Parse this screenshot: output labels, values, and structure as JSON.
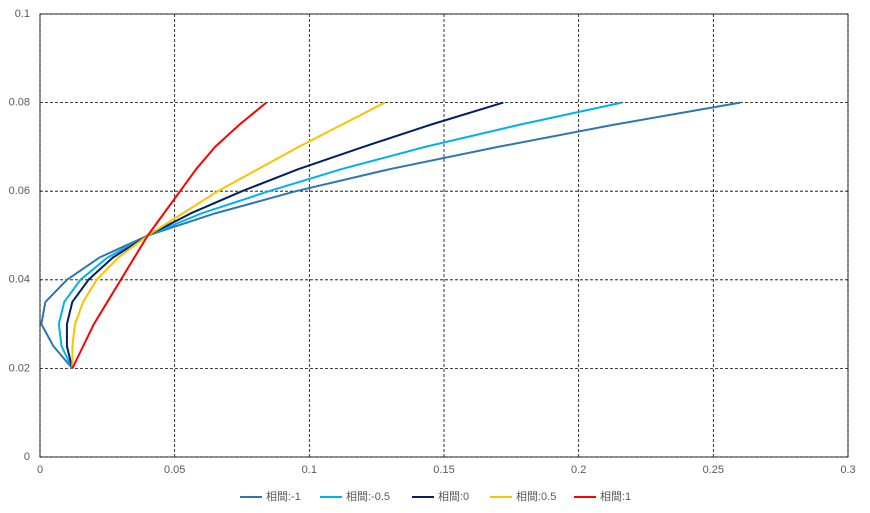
{
  "chart_data": {
    "type": "line",
    "y": [
      0.02,
      0.025,
      0.03,
      0.035,
      0.04,
      0.045,
      0.05,
      0.055,
      0.06,
      0.065,
      0.07,
      0.075,
      0.08
    ],
    "series": [
      {
        "name": "相間:-1",
        "color": "#2e75b6",
        "x": [
          0.012,
          0.005,
          0.0005,
          0.002,
          0.01,
          0.022,
          0.04,
          0.065,
          0.095,
          0.13,
          0.17,
          0.213,
          0.26
        ]
      },
      {
        "name": "相間:-0.5",
        "color": "#00b0f0",
        "x": [
          0.012,
          0.008,
          0.007,
          0.009,
          0.015,
          0.025,
          0.04,
          0.06,
          0.085,
          0.112,
          0.143,
          0.178,
          0.216
        ]
      },
      {
        "name": "相間:0",
        "color": "#002060",
        "x": [
          0.012,
          0.01,
          0.01,
          0.012,
          0.018,
          0.027,
          0.04,
          0.056,
          0.075,
          0.096,
          0.12,
          0.145,
          0.172
        ]
      },
      {
        "name": "相間:0.5",
        "color": "#ffc000",
        "x": [
          0.012,
          0.012,
          0.013,
          0.016,
          0.021,
          0.029,
          0.04,
          0.053,
          0.066,
          0.081,
          0.096,
          0.112,
          0.128
        ]
      },
      {
        "name": "相間:1",
        "color": "#ff0000",
        "x": [
          0.012,
          0.016,
          0.02,
          0.025,
          0.03,
          0.035,
          0.04,
          0.046,
          0.052,
          0.058,
          0.065,
          0.074,
          0.084
        ]
      }
    ],
    "xlim": [
      0,
      0.3
    ],
    "xticks": [
      0,
      0.05,
      0.1,
      0.15,
      0.2,
      0.25,
      0.3
    ],
    "ylim": [
      0,
      0.1
    ],
    "yticks": [
      0,
      0.02,
      0.04,
      0.06,
      0.08,
      0.1
    ],
    "grid": true,
    "legend": "bottom"
  }
}
